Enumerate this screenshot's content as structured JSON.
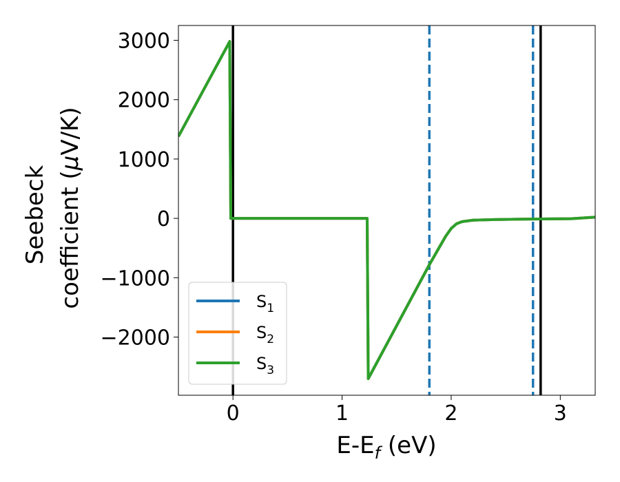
{
  "chart_data": {
    "type": "line",
    "title": "",
    "xlabel": "E-E",
    "xlabel_sub": "f",
    "xlabel_unit": " (eV)",
    "ylabel_line1": "Seebeck",
    "ylabel_line2_prefix": "coefficient  (",
    "ylabel_mu": "μ",
    "ylabel_line2_suffix": "V/K)",
    "xlim": [
      -0.5,
      3.32
    ],
    "ylim": [
      -2980,
      3250
    ],
    "xticks": [
      0,
      1,
      2,
      3
    ],
    "xtick_labels": [
      "0",
      "1",
      "2",
      "3"
    ],
    "yticks": [
      -2000,
      -1000,
      0,
      1000,
      2000,
      3000
    ],
    "ytick_labels": [
      "−2000",
      "−1000",
      "0",
      "1000",
      "2000",
      "3000"
    ],
    "grid": false,
    "legend_position": "lower-left",
    "series": [
      {
        "name": "S",
        "sub": "1",
        "color": "#1f77b4",
        "x": [
          -0.5,
          -0.03,
          -0.02,
          1.23,
          1.24,
          1.8,
          1.95,
          2.0,
          2.05,
          2.1,
          2.2,
          2.4,
          2.6,
          2.82,
          3.1,
          3.32
        ],
        "y": [
          1380,
          2980,
          0,
          0,
          -2700,
          -780,
          -300,
          -170,
          -90,
          -55,
          -30,
          -20,
          -15,
          -10,
          -5,
          20
        ]
      },
      {
        "name": "S",
        "sub": "2",
        "color": "#ff7f0e",
        "x": [
          -0.5,
          -0.03,
          -0.02,
          1.23,
          1.24,
          1.8,
          1.95,
          2.0,
          2.05,
          2.1,
          2.2,
          2.4,
          2.6,
          2.82,
          3.1,
          3.32
        ],
        "y": [
          1380,
          2980,
          0,
          0,
          -2700,
          -780,
          -300,
          -170,
          -90,
          -55,
          -30,
          -20,
          -15,
          -10,
          -5,
          20
        ]
      },
      {
        "name": "S",
        "sub": "3",
        "color": "#2ca02c",
        "x": [
          -0.5,
          -0.03,
          -0.02,
          1.23,
          1.24,
          1.8,
          1.95,
          2.0,
          2.05,
          2.1,
          2.2,
          2.4,
          2.6,
          2.82,
          3.1,
          3.32
        ],
        "y": [
          1380,
          2980,
          0,
          0,
          -2700,
          -780,
          -300,
          -170,
          -90,
          -55,
          -30,
          -20,
          -15,
          -10,
          -5,
          20
        ]
      }
    ],
    "vertical_lines": [
      {
        "x": 0.0,
        "style": "solid",
        "color": "#000000"
      },
      {
        "x": 2.82,
        "style": "solid",
        "color": "#000000"
      },
      {
        "x": 1.8,
        "style": "dashed",
        "color": "#1f77b4"
      },
      {
        "x": 2.75,
        "style": "dashed",
        "color": "#1f77b4"
      }
    ]
  }
}
